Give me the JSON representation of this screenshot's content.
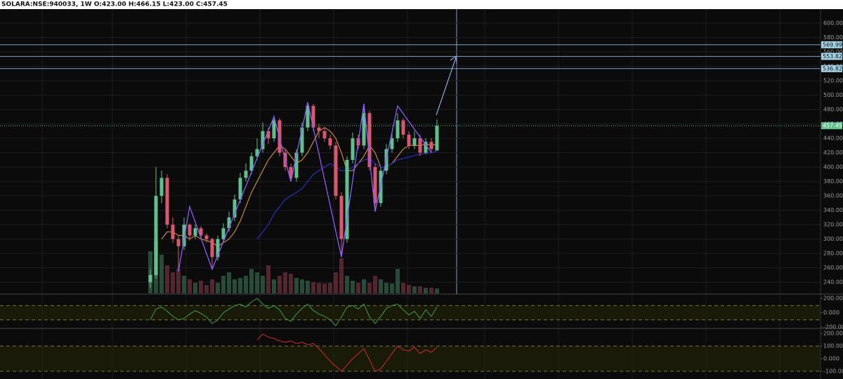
{
  "header": "SOLARA:NSE:940033, 1W  O:423.00 H:466.15 L:423.00 C:457.45",
  "chart_data": [
    {
      "type": "candlestick",
      "ylim": [
        224.5,
        619.5
      ],
      "yticks": [
        {
          "value": 600,
          "label": "600.00"
        },
        {
          "value": 580,
          "label": "580.00"
        },
        {
          "value": 560,
          "label": "560.00"
        },
        {
          "value": 540,
          "label": "540.00"
        },
        {
          "value": 520,
          "label": "520.00"
        },
        {
          "value": 500,
          "label": "500.00"
        },
        {
          "value": 480,
          "label": "480.00"
        },
        {
          "value": 460,
          "label": "460.00"
        },
        {
          "value": 440,
          "label": "440.00"
        },
        {
          "value": 420,
          "label": "420.00"
        },
        {
          "value": 400,
          "label": "400.00"
        },
        {
          "value": 380,
          "label": "380.00"
        },
        {
          "value": 360,
          "label": "360.00"
        },
        {
          "value": 340,
          "label": "340.00"
        },
        {
          "value": 320,
          "label": "320.00"
        },
        {
          "value": 300,
          "label": "300.00"
        },
        {
          "value": 280,
          "label": "280.00"
        },
        {
          "value": 260,
          "label": "260.00"
        },
        {
          "value": 240,
          "label": "240.00"
        }
      ],
      "grid": true,
      "up_color": "#5fbf8f",
      "down_color": "#d9576f",
      "open": [
        240,
        250,
        360,
        385,
        320,
        300,
        290,
        320,
        305,
        315,
        305,
        300,
        275,
        300,
        315,
        330,
        355,
        385,
        395,
        415,
        425,
        450,
        440,
        465,
        420,
        400,
        385,
        420,
        455,
        485,
        455,
        450,
        440,
        430,
        360,
        300,
        410,
        440,
        430,
        475,
        400,
        350,
        395,
        425,
        440,
        465,
        445,
        430,
        440,
        420,
        435,
        423
      ],
      "high": [
        258,
        400,
        395,
        390,
        330,
        305,
        330,
        322,
        320,
        318,
        308,
        302,
        305,
        322,
        338,
        362,
        392,
        405,
        420,
        440,
        462,
        455,
        472,
        468,
        425,
        405,
        425,
        462,
        490,
        488,
        460,
        455,
        445,
        435,
        365,
        415,
        448,
        445,
        488,
        478,
        405,
        400,
        432,
        448,
        475,
        468,
        450,
        450,
        445,
        440,
        440,
        466.15
      ],
      "low": [
        232,
        245,
        350,
        315,
        295,
        255,
        285,
        298,
        300,
        300,
        295,
        258,
        270,
        295,
        310,
        325,
        350,
        380,
        390,
        410,
        420,
        432,
        435,
        415,
        395,
        380,
        380,
        415,
        450,
        450,
        440,
        435,
        425,
        355,
        275,
        295,
        405,
        425,
        425,
        395,
        338,
        345,
        390,
        420,
        435,
        440,
        425,
        425,
        415,
        418,
        420,
        423
      ],
      "close": [
        250,
        360,
        385,
        320,
        300,
        290,
        320,
        305,
        315,
        305,
        300,
        275,
        300,
        315,
        330,
        355,
        385,
        395,
        415,
        425,
        450,
        440,
        465,
        420,
        400,
        385,
        420,
        455,
        485,
        455,
        450,
        440,
        430,
        360,
        300,
        410,
        440,
        430,
        475,
        400,
        350,
        395,
        425,
        440,
        465,
        445,
        430,
        440,
        420,
        435,
        425,
        457.45
      ],
      "volume": {
        "ylim": [
          0,
          100
        ],
        "values": [
          60,
          75,
          55,
          40,
          30,
          35,
          25,
          20,
          15,
          18,
          12,
          20,
          15,
          25,
          30,
          20,
          22,
          25,
          35,
          30,
          25,
          40,
          20,
          25,
          30,
          28,
          22,
          20,
          18,
          16,
          15,
          14,
          15,
          30,
          50,
          25,
          18,
          15,
          20,
          15,
          25,
          20,
          15,
          14,
          35,
          15,
          12,
          10,
          10,
          8,
          8,
          7
        ]
      },
      "lines": [
        {
          "color": "#c8883a",
          "values": [
            null,
            null,
            300,
            310,
            310,
            305,
            305,
            300,
            305,
            300,
            298,
            295,
            290,
            295,
            300,
            310,
            325,
            345,
            365,
            380,
            395,
            410,
            420,
            430,
            425,
            415,
            405,
            410,
            420,
            435,
            450,
            455,
            450,
            440,
            420,
            395,
            395,
            405,
            415,
            430,
            420,
            400,
            400,
            405,
            415,
            425,
            430,
            430,
            430,
            432,
            430,
            432
          ]
        },
        {
          "color": "#2e2ec0",
          "values": [
            null,
            null,
            null,
            null,
            null,
            null,
            null,
            null,
            null,
            null,
            null,
            null,
            null,
            null,
            null,
            null,
            null,
            null,
            null,
            300,
            310,
            320,
            335,
            345,
            355,
            360,
            365,
            370,
            380,
            390,
            395,
            400,
            405,
            400,
            395,
            395,
            400,
            405,
            410,
            412,
            405,
            400,
            400,
            405,
            410,
            412,
            414,
            416,
            418,
            419,
            420,
            422
          ]
        }
      ],
      "zigzag": {
        "color": "#8a5cff",
        "x": [
          5,
          7,
          11,
          22,
          25,
          28,
          34,
          38,
          40,
          44,
          50
        ],
        "values": [
          255,
          345,
          258,
          470,
          380,
          490,
          275,
          488,
          338,
          485,
          420
        ]
      },
      "price_lines": [
        {
          "value": 569.99,
          "label": "569.99"
        },
        {
          "value": 553.82,
          "label": "553.82"
        },
        {
          "value": 536.82,
          "label": "536.82"
        }
      ],
      "last_price": {
        "value": 457.45,
        "label": "457.45"
      }
    },
    {
      "type": "line",
      "color": "#3aa040",
      "ylim": [
        -210,
        250
      ],
      "yticks": [
        {
          "value": 200,
          "label": "200.000"
        },
        {
          "value": 0,
          "label": "0.000"
        },
        {
          "value": -200,
          "label": "-200.000"
        }
      ],
      "band": [
        -100,
        100
      ],
      "values": [
        -100,
        50,
        80,
        20,
        -50,
        -100,
        -80,
        -20,
        30,
        -10,
        -60,
        -150,
        -100,
        0,
        50,
        100,
        120,
        80,
        150,
        200,
        120,
        60,
        100,
        40,
        -80,
        -120,
        -20,
        60,
        120,
        30,
        -20,
        -50,
        -100,
        -180,
        -60,
        80,
        100,
        50,
        120,
        -60,
        -150,
        -50,
        60,
        100,
        120,
        40,
        -30,
        20,
        -80,
        40,
        -50,
        80
      ]
    },
    {
      "type": "line",
      "color": "#d02a2a",
      "ylim": [
        -161,
        228
      ],
      "yticks": [
        {
          "value": 200,
          "label": "200.000"
        },
        {
          "value": 100,
          "label": "100.000"
        },
        {
          "value": 0,
          "label": "0.000"
        },
        {
          "value": -100,
          "label": "-100.000"
        }
      ],
      "band": [
        -100,
        100
      ],
      "values": [
        null,
        null,
        null,
        null,
        null,
        null,
        null,
        null,
        null,
        null,
        null,
        null,
        null,
        null,
        null,
        null,
        null,
        null,
        null,
        150,
        195,
        170,
        160,
        140,
        130,
        140,
        120,
        130,
        110,
        120,
        80,
        30,
        -20,
        -60,
        -100,
        -50,
        0,
        40,
        80,
        -10,
        -100,
        -80,
        -20,
        40,
        100,
        70,
        60,
        90,
        40,
        70,
        50,
        90
      ]
    }
  ]
}
